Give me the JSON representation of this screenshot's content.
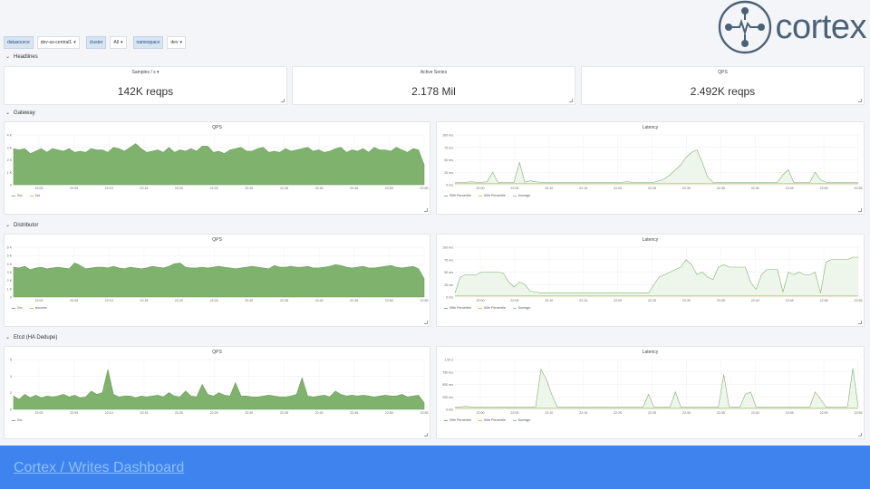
{
  "variables": [
    {
      "label": "datasource",
      "value": "dev-us-central1"
    },
    {
      "label": "cluster",
      "value": "All"
    },
    {
      "label": "namespace",
      "value": "dev"
    }
  ],
  "logo": {
    "text": "cortex"
  },
  "colors": {
    "green": "#7eb26d",
    "yellow": "#eab839",
    "cyan": "#6ed0e0",
    "footer": "#3f83ee"
  },
  "rows": {
    "headlines": "Headlines",
    "gateway": "Gateway",
    "distributor": "Distributor",
    "etcd": "Etcd (HA Dedupe)"
  },
  "stats": [
    {
      "title": "Samples / s",
      "value": "142K reqps"
    },
    {
      "title": "Active Series",
      "value": "2.178 Mil"
    },
    {
      "title": "QPS",
      "value": "2.492K reqps"
    }
  ],
  "panels": {
    "gateway_qps": {
      "title": "QPS",
      "yticks": [
        "4 K",
        "3 K",
        "2 K",
        "1 K",
        "0"
      ],
      "xticks": [
        "22:00",
        "22:05",
        "22:10",
        "22:15",
        "22:20",
        "22:25",
        "22:30",
        "22:35",
        "22:40",
        "22:45",
        "22:50",
        "22:55"
      ],
      "legend": [
        {
          "name": "2xx",
          "color": "#7eb26d"
        },
        {
          "name": "4xx",
          "color": "#eab839"
        }
      ],
      "values": [
        2.9,
        2.8,
        2.9,
        2.5,
        2.7,
        2.9,
        2.6,
        2.9,
        2.8,
        2.7,
        2.9,
        2.6,
        2.7,
        2.6,
        2.9,
        2.8,
        2.8,
        2.6,
        3.0,
        2.9,
        2.7,
        3.0,
        3.3,
        2.9,
        2.6,
        2.7,
        2.8,
        2.6,
        3.0,
        2.6,
        2.8,
        2.7,
        2.9,
        2.7,
        3.1,
        3.1,
        2.6,
        2.7,
        2.5,
        2.8,
        2.9,
        3.0,
        2.7,
        2.7,
        2.9,
        3.0,
        2.6,
        2.7,
        2.6,
        2.9,
        2.7,
        2.8,
        2.9,
        3.0,
        2.7,
        2.8,
        2.6,
        2.7,
        2.9,
        3.0,
        2.6,
        2.8,
        2.7,
        2.9,
        2.6,
        3.0,
        2.8,
        2.8,
        2.7,
        3.0,
        2.8,
        2.6,
        2.9,
        2.8,
        1.6
      ],
      "ymax": 4
    },
    "gateway_latency": {
      "title": "Latency",
      "yticks": [
        "100 ms",
        "75 ms",
        "50 ms",
        "25 ms",
        "0 ms"
      ],
      "xticks": [
        "22:00",
        "22:05",
        "22:10",
        "22:15",
        "22:20",
        "22:25",
        "22:30",
        "22:35",
        "22:40",
        "22:45",
        "22:50",
        "22:55"
      ],
      "legend": [
        {
          "name": "99th Percentile",
          "color": "#7eb26d"
        },
        {
          "name": "50th Percentile",
          "color": "#eab839"
        },
        {
          "name": "Average",
          "color": "#6ed0e0"
        }
      ],
      "values": [
        5,
        5,
        5,
        6,
        5,
        5,
        6,
        25,
        5,
        5,
        5,
        5,
        45,
        5,
        8,
        6,
        5,
        5,
        5,
        5,
        5,
        5,
        5,
        5,
        5,
        5,
        5,
        5,
        5,
        5,
        5,
        5,
        6,
        5,
        5,
        5,
        5,
        5,
        8,
        12,
        20,
        30,
        40,
        55,
        65,
        70,
        45,
        15,
        5,
        5,
        5,
        5,
        5,
        5,
        5,
        5,
        5,
        5,
        5,
        5,
        5,
        20,
        30,
        5,
        5,
        5,
        5,
        25,
        10,
        5,
        5,
        5,
        5,
        5,
        5,
        5
      ],
      "ymax": 100
    },
    "dist_qps": {
      "title": "QPS",
      "yticks": [
        "6 K",
        "5 K",
        "4 K",
        "3 K",
        "2 K",
        "1 K",
        "0"
      ],
      "xticks": [
        "22:00",
        "22:05",
        "22:10",
        "22:15",
        "22:20",
        "22:25",
        "22:30",
        "22:35",
        "22:40",
        "22:45",
        "22:50",
        "22:55"
      ],
      "legend": [
        {
          "name": "2xx",
          "color": "#7eb26d"
        },
        {
          "name": "success",
          "color": "#eab839"
        }
      ],
      "values": [
        3.6,
        3.5,
        3.7,
        3.3,
        3.5,
        3.6,
        3.4,
        3.5,
        3.6,
        3.5,
        3.4,
        4.1,
        3.8,
        3.4,
        3.5,
        3.6,
        3.6,
        3.5,
        3.7,
        3.5,
        3.4,
        3.6,
        3.5,
        3.4,
        3.5,
        3.7,
        3.6,
        3.5,
        3.7,
        4.0,
        4.1,
        3.6,
        3.5,
        3.5,
        3.6,
        3.5,
        3.6,
        3.7,
        3.6,
        3.5,
        3.4,
        3.5,
        3.6,
        3.7,
        3.6,
        3.5,
        3.4,
        3.8,
        3.6,
        3.6,
        3.7,
        3.6,
        3.6,
        3.7,
        3.5,
        3.5,
        3.6,
        3.7,
        3.9,
        3.8,
        3.6,
        3.5,
        3.6,
        3.7,
        3.5,
        3.5,
        3.6,
        3.7,
        3.8,
        3.6,
        3.5,
        3.6,
        3.7,
        3.4,
        2.2
      ],
      "ymax": 6
    },
    "dist_latency": {
      "title": "Latency",
      "yticks": [
        "100 ms",
        "75 ms",
        "50 ms",
        "25 ms",
        "0 ms"
      ],
      "xticks": [
        "22:00",
        "22:05",
        "22:10",
        "22:15",
        "22:20",
        "22:25",
        "22:30",
        "22:35",
        "22:40",
        "22:45",
        "22:50",
        "22:55"
      ],
      "legend": [
        {
          "name": "99th Percentile",
          "color": "#7eb26d"
        },
        {
          "name": "50th Percentile",
          "color": "#eab839"
        },
        {
          "name": "Average",
          "color": "#6ed0e0"
        }
      ],
      "values": [
        8,
        40,
        45,
        45,
        45,
        50,
        50,
        50,
        50,
        48,
        30,
        20,
        30,
        25,
        12,
        10,
        8,
        8,
        8,
        8,
        8,
        8,
        8,
        8,
        8,
        8,
        8,
        8,
        8,
        8,
        8,
        8,
        8,
        8,
        8,
        8,
        8,
        25,
        40,
        45,
        50,
        55,
        60,
        75,
        65,
        45,
        50,
        40,
        35,
        60,
        65,
        60,
        60,
        60,
        60,
        30,
        15,
        45,
        55,
        55,
        55,
        10,
        50,
        45,
        50,
        45,
        45,
        50,
        8,
        70,
        75,
        75,
        75,
        75,
        80,
        80
      ],
      "ymax": 100
    },
    "etcd_qps": {
      "title": "QPS",
      "yticks": [
        "6",
        "4",
        "2",
        "0"
      ],
      "xticks": [
        "22:00",
        "22:05",
        "22:10",
        "22:15",
        "22:20",
        "22:25",
        "22:30",
        "22:35",
        "22:40",
        "22:45",
        "22:50",
        "22:55"
      ],
      "legend": [
        {
          "name": "2xx",
          "color": "#7eb26d"
        }
      ],
      "values": [
        1.6,
        1.2,
        1.8,
        1.4,
        1.7,
        1.4,
        1.6,
        1.5,
        1.6,
        1.8,
        1.5,
        1.7,
        1.4,
        1.5,
        2.2,
        1.8,
        2.0,
        4.8,
        1.8,
        1.5,
        1.6,
        1.6,
        1.4,
        1.6,
        1.5,
        1.6,
        1.7,
        1.5,
        2.0,
        1.6,
        1.5,
        2.2,
        1.6,
        1.5,
        3.0,
        1.8,
        1.6,
        2.0,
        1.7,
        1.6,
        3.2,
        1.6,
        1.6,
        1.5,
        1.5,
        1.6,
        1.7,
        1.6,
        1.5,
        1.5,
        1.6,
        1.8,
        3.8,
        1.6,
        1.5,
        1.6,
        1.7,
        1.5,
        2.2,
        1.8,
        1.6,
        1.7,
        1.6,
        1.7,
        1.6,
        1.5,
        1.6,
        1.7,
        1.6,
        1.6,
        1.8,
        1.5,
        1.6,
        1.7,
        0.8
      ],
      "ymax": 6
    },
    "etcd_latency": {
      "title": "Latency",
      "yticks": [
        "1.00 s",
        "750 ms",
        "500 ms",
        "250 ms",
        "0 ms"
      ],
      "xticks": [
        "22:00",
        "22:05",
        "22:10",
        "22:15",
        "22:20",
        "22:25",
        "22:30",
        "22:35",
        "22:40",
        "22:45",
        "22:50",
        "22:55"
      ],
      "legend": [
        {
          "name": "99th Percentile",
          "color": "#7eb26d"
        },
        {
          "name": "50th Percentile",
          "color": "#eab839"
        },
        {
          "name": "Average",
          "color": "#6ed0e0"
        }
      ],
      "values": [
        50,
        50,
        60,
        50,
        50,
        50,
        50,
        50,
        50,
        50,
        50,
        50,
        50,
        50,
        50,
        50,
        800,
        600,
        300,
        50,
        50,
        50,
        50,
        50,
        50,
        50,
        50,
        50,
        50,
        50,
        50,
        50,
        50,
        50,
        50,
        50,
        300,
        50,
        50,
        50,
        50,
        350,
        50,
        50,
        50,
        50,
        50,
        50,
        50,
        50,
        700,
        50,
        50,
        50,
        300,
        350,
        50,
        50,
        50,
        50,
        50,
        50,
        50,
        50,
        50,
        50,
        50,
        350,
        200,
        50,
        50,
        50,
        50,
        50,
        820,
        50
      ],
      "ymax": 1000
    }
  }
}
